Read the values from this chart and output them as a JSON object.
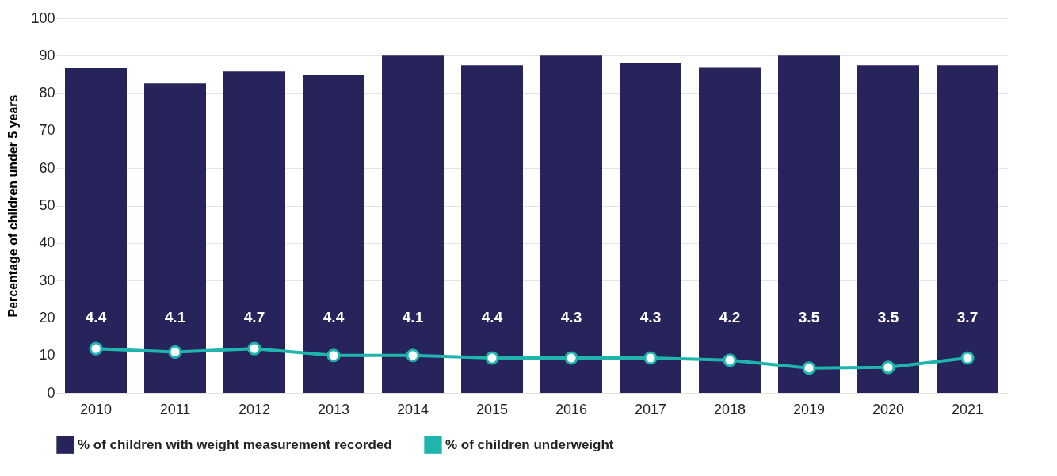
{
  "chart_data": {
    "type": "bar",
    "ylabel": "Percentage of children under 5 years",
    "categories": [
      "2010",
      "2011",
      "2012",
      "2013",
      "2014",
      "2015",
      "2016",
      "2017",
      "2018",
      "2019",
      "2020",
      "2021"
    ],
    "ylim": [
      0,
      100
    ],
    "yticks": [
      0,
      10,
      20,
      30,
      40,
      50,
      60,
      70,
      80,
      90,
      100
    ],
    "grid": "y",
    "legend": "bottom",
    "series": [
      {
        "name": "% of children with weight measurement recorded",
        "color": "#27245c",
        "values": [
          86.7,
          82.6,
          85.8,
          84.8,
          90,
          87.5,
          90,
          88.1,
          86.8,
          90,
          87.5,
          87.5
        ]
      },
      {
        "name": "% of children underweight",
        "type": "line",
        "color": "#1fb5ad",
        "marker": "circle",
        "line_style": "solid",
        "values": [
          11.8,
          10.9,
          11.8,
          10,
          10,
          9.3,
          9.3,
          9.3,
          8.7,
          6.6,
          6.8,
          9.3
        ]
      }
    ],
    "annotations": [
      "4.4",
      "4.1",
      "4.7",
      "4.4",
      "4.1",
      "4.4",
      "4.3",
      "4.3",
      "4.2",
      "3.5",
      "3.5",
      "3.7"
    ]
  }
}
